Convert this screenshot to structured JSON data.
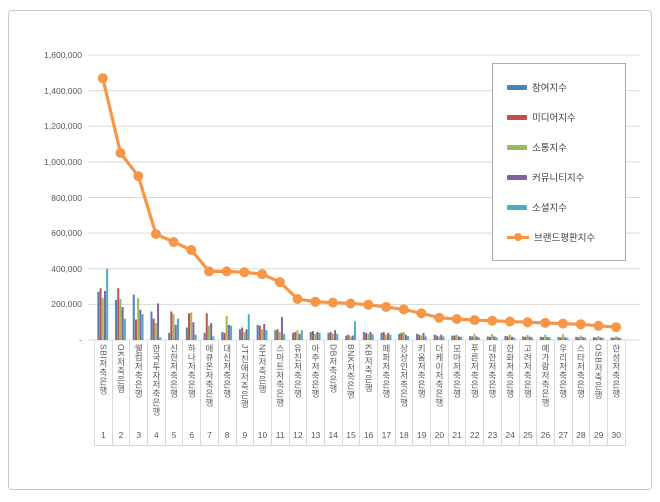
{
  "window": {
    "background": "#ffffff",
    "frame_border": "#c9c9c9"
  },
  "chart_data": {
    "type": "bar",
    "subtype": "grouped-bars-with-line-overlay",
    "title": "",
    "categories": [
      "SBI저축은행",
      "OK저축은행",
      "웰컴저축은행",
      "한국투자저축은행",
      "신한저축은행",
      "하나저축은행",
      "애큐온저축은행",
      "대신저축은행",
      "JT친애저축은행",
      "NH저축은행",
      "스마트저축은행",
      "유진저축은행",
      "아주저축은행",
      "DB저축은행",
      "BNK저축은행",
      "KB저축은행",
      "페퍼저축은행",
      "상상인저축은행",
      "키움저축은행",
      "더케이저축은행",
      "모아저축은행",
      "푸른저축은행",
      "대한저축은행",
      "한화저축은행",
      "고려저축은행",
      "예가람저축은행",
      "우리저축은행",
      "스타저축은행",
      "OSB저축은행",
      "한성저축은행"
    ],
    "ranks": [
      "1",
      "2",
      "3",
      "4",
      "5",
      "6",
      "7",
      "8",
      "9",
      "10",
      "11",
      "12",
      "13",
      "14",
      "15",
      "16",
      "17",
      "18",
      "19",
      "20",
      "21",
      "22",
      "23",
      "24",
      "25",
      "26",
      "27",
      "28",
      "29",
      "30"
    ],
    "series": [
      {
        "name": "참여지수",
        "type": "bar",
        "color": "#4F81BD",
        "values": [
          270000,
          225000,
          255000,
          160000,
          40000,
          70000,
          40000,
          45000,
          60000,
          85000,
          55000,
          40000,
          45000,
          40000,
          25000,
          45000,
          40000,
          35000,
          35000,
          30000,
          25000,
          22000,
          20000,
          22000,
          20000,
          18000,
          17000,
          18000,
          16000,
          14000
        ]
      },
      {
        "name": "미디어지수",
        "type": "bar",
        "color": "#C0504D",
        "values": [
          290000,
          290000,
          115000,
          120000,
          160000,
          150000,
          150000,
          40000,
          70000,
          80000,
          60000,
          45000,
          50000,
          45000,
          30000,
          40000,
          45000,
          40000,
          30000,
          25000,
          25000,
          20000,
          18000,
          20000,
          18000,
          16000,
          15000,
          15000,
          14000,
          12000
        ]
      },
      {
        "name": "소통지수",
        "type": "bar",
        "color": "#9BBB59",
        "values": [
          235000,
          230000,
          235000,
          95000,
          145000,
          155000,
          80000,
          135000,
          45000,
          60000,
          45000,
          55000,
          35000,
          35000,
          20000,
          35000,
          30000,
          45000,
          25000,
          20000,
          30000,
          35000,
          35000,
          30000,
          28000,
          30000,
          32000,
          25000,
          22000,
          20000
        ]
      },
      {
        "name": "커뮤니티지수",
        "type": "bar",
        "color": "#8064A2",
        "values": [
          275000,
          185000,
          170000,
          205000,
          85000,
          100000,
          95000,
          85000,
          60000,
          90000,
          130000,
          35000,
          45000,
          55000,
          25000,
          45000,
          40000,
          30000,
          40000,
          30000,
          20000,
          20000,
          20000,
          18000,
          19000,
          17000,
          15000,
          16000,
          15000,
          14000
        ]
      },
      {
        "name": "소셜지수",
        "type": "bar",
        "color": "#4BACC6",
        "values": [
          400000,
          120000,
          145000,
          15000,
          120000,
          30000,
          20000,
          80000,
          145000,
          55000,
          35000,
          55000,
          40000,
          35000,
          105000,
          33000,
          30000,
          22000,
          20000,
          20000,
          18000,
          15000,
          15000,
          14000,
          15000,
          15000,
          13000,
          14000,
          13000,
          12000
        ]
      },
      {
        "name": "브랜드평판지수",
        "type": "line",
        "color": "#F79646",
        "values": [
          1470000,
          1050000,
          920000,
          595000,
          550000,
          505000,
          385000,
          385000,
          380000,
          370000,
          325000,
          230000,
          215000,
          210000,
          205000,
          198000,
          185000,
          172000,
          150000,
          125000,
          118000,
          112000,
          108000,
          104000,
          100000,
          96000,
          92000,
          88000,
          80000,
          72000
        ]
      }
    ],
    "y_axis": {
      "min": 0,
      "max": 1600000,
      "step": 200000,
      "tick_labels": [
        "1,600,000",
        "1,400,000",
        "1,200,000",
        "1,000,000",
        "800,000",
        "600,000",
        "400,000",
        "200,000",
        "-"
      ]
    },
    "grid": true,
    "gridline_color": "#d9d9d9",
    "axis_text_color": "#595959",
    "legend_position": "top-right"
  }
}
